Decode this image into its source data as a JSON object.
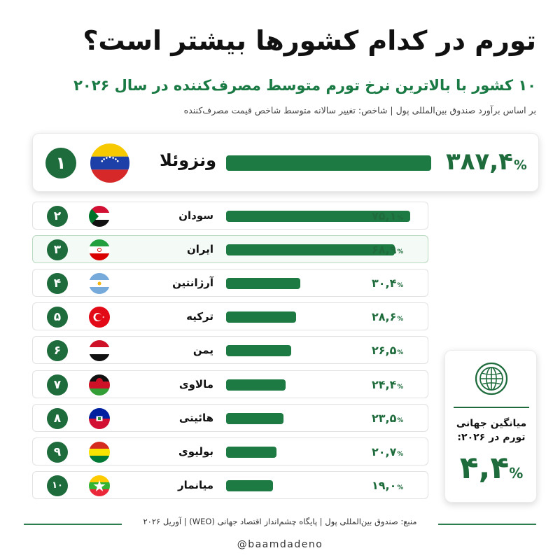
{
  "header": {
    "title": "تورم در کدام کشورها بیشتر است؟",
    "subtitle": "۱۰ کشور با بالاترین نرخ تورم متوسط مصرف‌کننده در سال ۲۰۲۶",
    "note": "بر اساس برآورد صندوق بین‌المللی پول  |  شاخص: تغییر سالانه متوسط شاخص قیمت مصرف‌کننده"
  },
  "chart_data": {
    "type": "bar",
    "orientation": "horizontal",
    "title": "تورم در کدام کشورها بیشتر است؟",
    "subtitle": "۱۰ کشور با بالاترین نرخ تورم متوسط مصرف‌کننده در سال ۲۰۲۶",
    "unit": "%",
    "items": [
      {
        "rank": "۱",
        "country": "ونزوئلا",
        "value": 387.4,
        "label": "۳۸۷,۴",
        "flag": "venezuela-flag"
      },
      {
        "rank": "۲",
        "country": "سودان",
        "value": 75.1,
        "label": "۷۵,۱",
        "flag": "sudan-flag"
      },
      {
        "rank": "۳",
        "country": "ایران",
        "value": 68.9,
        "label": "۶۸,۹",
        "flag": "iran-flag"
      },
      {
        "rank": "۴",
        "country": "آرژانتین",
        "value": 30.4,
        "label": "۳۰,۴",
        "flag": "argentina-flag"
      },
      {
        "rank": "۵",
        "country": "ترکیه",
        "value": 28.6,
        "label": "۲۸,۶",
        "flag": "turkey-flag"
      },
      {
        "rank": "۶",
        "country": "یمن",
        "value": 26.5,
        "label": "۲۶,۵",
        "flag": "yemen-flag"
      },
      {
        "rank": "۷",
        "country": "مالاوی",
        "value": 24.4,
        "label": "۲۴,۴",
        "flag": "malawi-flag"
      },
      {
        "rank": "۸",
        "country": "هائیتی",
        "value": 23.5,
        "label": "۲۳,۵",
        "flag": "haiti-flag"
      },
      {
        "rank": "۹",
        "country": "بولیوی",
        "value": 20.7,
        "label": "۲۰,۷",
        "flag": "bolivia-flag"
      },
      {
        "rank": "۱۰",
        "country": "میانمار",
        "value": 19.0,
        "label": "۱۹,۰",
        "flag": "myanmar-flag"
      }
    ],
    "highlighted_rank": "۳"
  },
  "average": {
    "label_line1": "میانگین جهانی",
    "label_line2": "تورم در ۲۰۲۶:",
    "value": "۴,۴",
    "unit": "%",
    "icon": "globe-icon"
  },
  "footer": {
    "source": "منبع: صندوق بین‌المللی پول  |  پایگاه چشم‌انداز اقتصاد جهانی (WEO)  |  آوریل ۲۰۲۶",
    "handle": "@baamdadeno"
  },
  "colors": {
    "accent": "#1e7a43",
    "rank_circle": "#1e6b3c",
    "highlight_row": "#f4faf5"
  }
}
